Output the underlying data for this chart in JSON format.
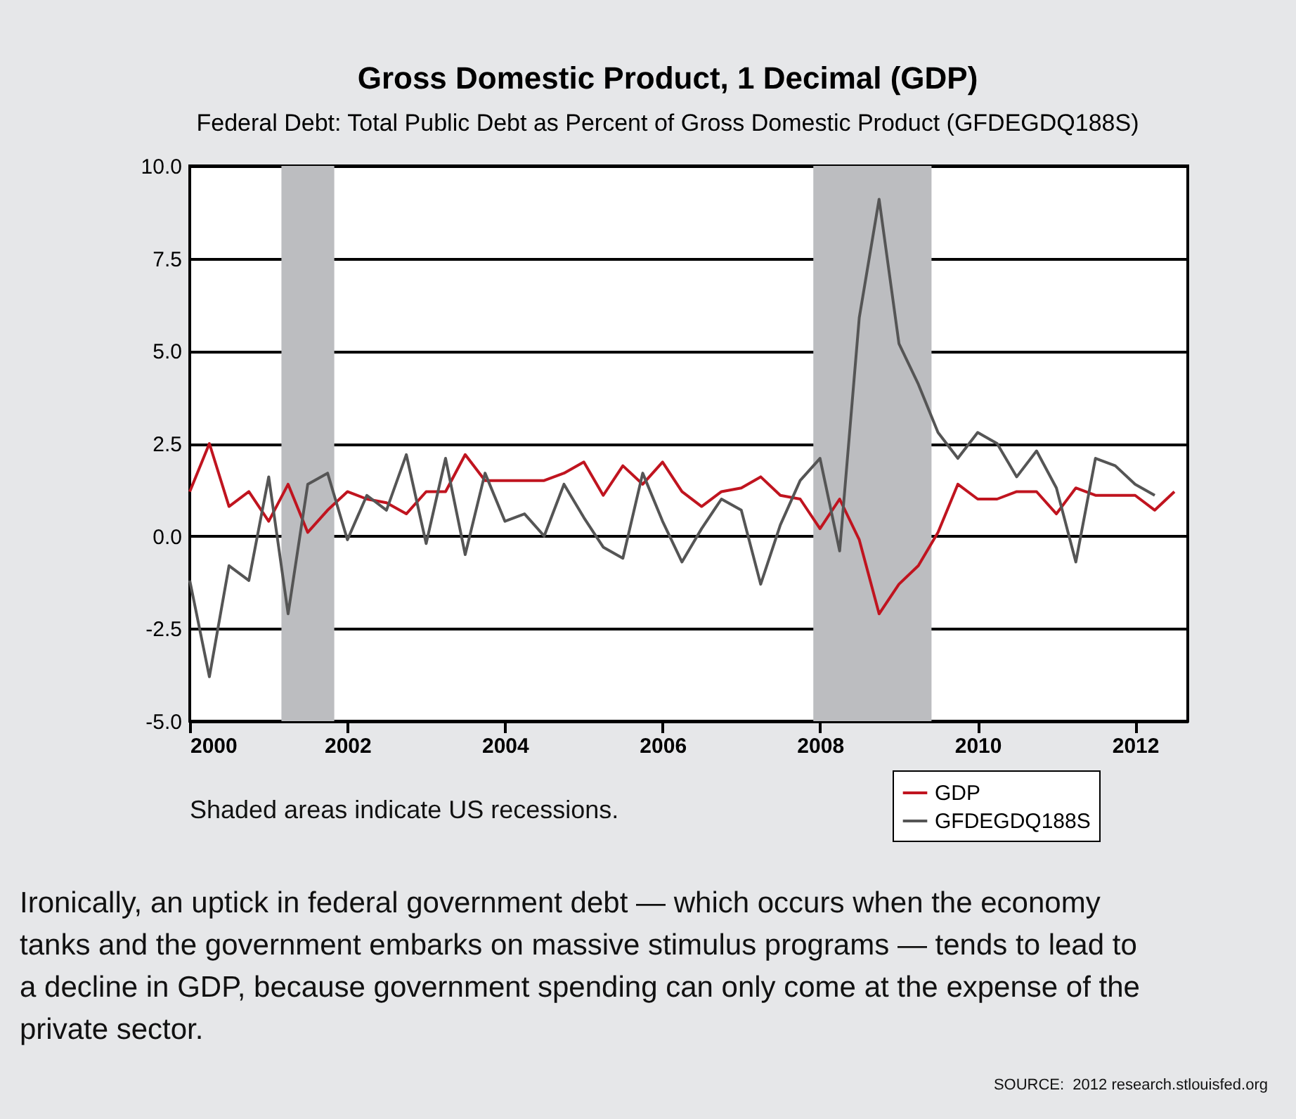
{
  "chart_data": {
    "type": "line",
    "title": "Gross Domestic Product, 1 Decimal (GDP)",
    "subtitle": "Federal Debt: Total Public Debt as Percent of Gross Domestic Product (GFDEGDQ188S)",
    "x": [
      "2000-01",
      "2000-04",
      "2000-07",
      "2000-10",
      "2001-01",
      "2001-04",
      "2001-07",
      "2001-10",
      "2002-01",
      "2002-04",
      "2002-07",
      "2002-10",
      "2003-01",
      "2003-04",
      "2003-07",
      "2003-10",
      "2004-01",
      "2004-04",
      "2004-07",
      "2004-10",
      "2005-01",
      "2005-04",
      "2005-07",
      "2005-10",
      "2006-01",
      "2006-04",
      "2006-07",
      "2006-10",
      "2007-01",
      "2007-04",
      "2007-07",
      "2007-10",
      "2008-01",
      "2008-04",
      "2008-07",
      "2008-10",
      "2009-01",
      "2009-04",
      "2009-07",
      "2009-10",
      "2010-01",
      "2010-04",
      "2010-07",
      "2010-10",
      "2011-01",
      "2011-04",
      "2011-07",
      "2011-10",
      "2012-01",
      "2012-04",
      "2012-07"
    ],
    "series": [
      {
        "name": "GDP",
        "color": "#c0141f",
        "values": [
          1.2,
          2.5,
          0.8,
          1.2,
          0.4,
          1.4,
          0.1,
          0.7,
          1.2,
          1.0,
          0.9,
          0.6,
          1.2,
          1.2,
          2.2,
          1.5,
          1.5,
          1.5,
          1.5,
          1.7,
          2.0,
          1.1,
          1.9,
          1.4,
          2.0,
          1.2,
          0.8,
          1.2,
          1.3,
          1.6,
          1.1,
          1.0,
          0.2,
          1.0,
          -0.1,
          -2.1,
          -1.3,
          -0.8,
          0.1,
          1.4,
          1.0,
          1.0,
          1.2,
          1.2,
          0.6,
          1.3,
          1.1,
          1.1,
          1.1,
          0.7,
          1.2
        ]
      },
      {
        "name": "GFDEGDQ188S",
        "color": "#555555",
        "values": [
          -1.2,
          -3.8,
          -0.8,
          -1.2,
          1.6,
          -2.1,
          1.4,
          1.7,
          -0.1,
          1.1,
          0.7,
          2.2,
          -0.2,
          2.1,
          -0.5,
          1.7,
          0.4,
          0.6,
          0.0,
          1.4,
          0.5,
          -0.3,
          -0.6,
          1.7,
          0.4,
          -0.7,
          0.2,
          1.0,
          0.7,
          -1.3,
          0.3,
          1.5,
          2.1,
          -0.4,
          5.9,
          9.1,
          5.2,
          4.1,
          2.8,
          2.1,
          2.8,
          2.5,
          1.6,
          2.3,
          1.3,
          -0.7,
          2.1,
          1.9,
          1.4,
          1.1,
          null
        ]
      }
    ],
    "xlim": [
      "2000-01",
      "2012-09"
    ],
    "xticks": [
      "2000",
      "2002",
      "2004",
      "2006",
      "2008",
      "2010",
      "2012"
    ],
    "ylim": [
      -5,
      10
    ],
    "yticks": [
      {
        "value": -5,
        "label": "-5.0"
      },
      {
        "value": -2.5,
        "label": "-2.5"
      },
      {
        "value": 0,
        "label": "0.0"
      },
      {
        "value": 2.5,
        "label": "2.5"
      },
      {
        "value": 5,
        "label": "5.0"
      },
      {
        "value": 7.5,
        "label": "7.5"
      },
      {
        "value": 10,
        "label": "10.0"
      }
    ],
    "bands": [
      {
        "axis": "x",
        "from": "2001-03",
        "to": "2001-11",
        "color": "#bcbdc0"
      },
      {
        "axis": "x",
        "from": "2007-12",
        "to": "2009-06",
        "color": "#bcbdc0"
      }
    ],
    "grid": "y",
    "legend": "bottom right",
    "marker": "none",
    "line_style": "solid",
    "annotations": [
      "Shaded areas indicate US recessions.",
      "Ironically, an uptick in federal government debt — which occurs when the economy tanks and the government embarks on massive stimulus programs — tends to lead to a decline in GDP, because government spending can only come at the expense of the private sector.",
      "SOURCE:  2012 research.stlouisfed.org"
    ]
  }
}
